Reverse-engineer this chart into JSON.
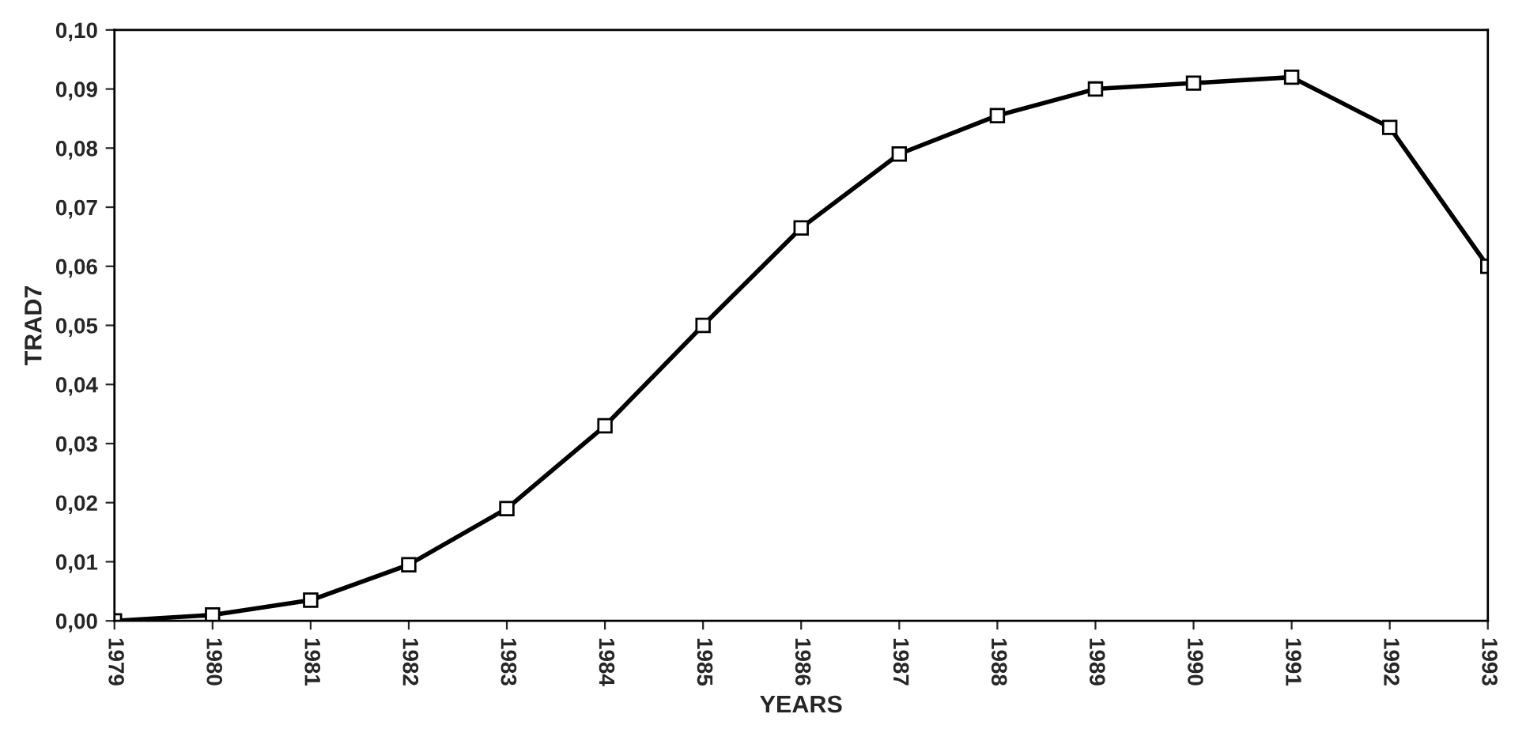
{
  "chart_data": {
    "type": "line",
    "xlabel": "YEARS",
    "ylabel": "TRAD7",
    "categories": [
      "1979",
      "1980",
      "1981",
      "1982",
      "1983",
      "1984",
      "1985",
      "1986",
      "1987",
      "1988",
      "1989",
      "1990",
      "1991",
      "1992",
      "1993"
    ],
    "series": [
      {
        "color": "#000000",
        "values": [
          0.0,
          0.001,
          0.0035,
          0.0095,
          0.019,
          0.033,
          0.05,
          0.0665,
          0.079,
          0.0855,
          0.09,
          0.091,
          0.092,
          0.0835,
          0.06
        ]
      }
    ],
    "ylim": [
      0,
      0.1
    ],
    "yticks": [
      {
        "value": 0,
        "label": "0,00"
      },
      {
        "value": 0.01,
        "label": "0,01"
      },
      {
        "value": 0.02,
        "label": "0,02"
      },
      {
        "value": 0.03,
        "label": "0,03"
      },
      {
        "value": 0.04,
        "label": "0,04"
      },
      {
        "value": 0.05,
        "label": "0,05"
      },
      {
        "value": 0.06,
        "label": "0,06"
      },
      {
        "value": 0.07,
        "label": "0,07"
      },
      {
        "value": 0.08,
        "label": "0,08"
      },
      {
        "value": 0.09,
        "label": "0,09"
      },
      {
        "value": 0.1,
        "label": "0,10"
      }
    ],
    "marker": "square",
    "line_style": "solid",
    "grid": false,
    "legend": false
  }
}
